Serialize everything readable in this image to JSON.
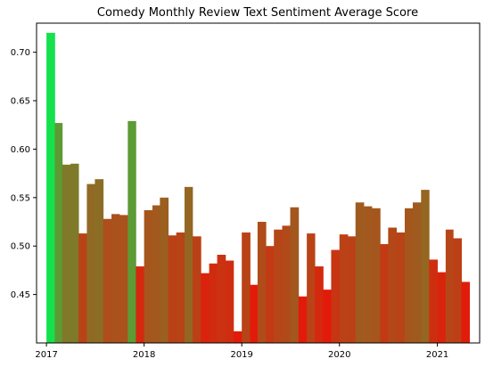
{
  "chart_data": {
    "type": "bar",
    "title": "Comedy Monthly Review Text Sentiment Average Score",
    "xlabel": "",
    "ylabel": "",
    "ylim": [
      0.4,
      0.73
    ],
    "xlim": [
      "2016-11-25",
      "2021-06-08"
    ],
    "y_ticks": [
      "0.45",
      "0.50",
      "0.55",
      "0.60",
      "0.65",
      "0.70"
    ],
    "x_ticks": [
      {
        "date": "2017-01-01",
        "label": "2017"
      },
      {
        "date": "2018-01-01",
        "label": "2018"
      },
      {
        "date": "2019-01-01",
        "label": "2019"
      },
      {
        "date": "2020-01-01",
        "label": "2020"
      },
      {
        "date": "2021-01-01",
        "label": "2021"
      }
    ],
    "grid": false,
    "color_scale": {
      "low": "#e31a09",
      "high": "#14e14c",
      "low_value": 0.46,
      "high_value": 0.72
    },
    "x": [
      "2017-01",
      "2017-02",
      "2017-03",
      "2017-04",
      "2017-05",
      "2017-06",
      "2017-07",
      "2017-08",
      "2017-09",
      "2017-10",
      "2017-11",
      "2017-12",
      "2018-01",
      "2018-02",
      "2018-03",
      "2018-04",
      "2018-05",
      "2018-06",
      "2018-07",
      "2018-08",
      "2018-09",
      "2018-10",
      "2018-11",
      "2018-12",
      "2019-01",
      "2019-02",
      "2019-03",
      "2019-04",
      "2019-05",
      "2019-06",
      "2019-07",
      "2019-08",
      "2019-09",
      "2019-10",
      "2019-11",
      "2019-12",
      "2020-01",
      "2020-02",
      "2020-03",
      "2020-04",
      "2020-05",
      "2020-06",
      "2020-07",
      "2020-08",
      "2020-09",
      "2020-10",
      "2020-11",
      "2020-12",
      "2021-01",
      "2021-02",
      "2021-03",
      "2021-04"
    ],
    "values": [
      0.72,
      0.627,
      0.584,
      0.585,
      0.513,
      0.564,
      0.569,
      0.528,
      0.533,
      0.532,
      0.629,
      0.479,
      0.537,
      0.542,
      0.55,
      0.511,
      0.514,
      0.561,
      0.51,
      0.472,
      0.482,
      0.491,
      0.485,
      0.412,
      0.514,
      0.46,
      0.525,
      0.5,
      0.517,
      0.521,
      0.54,
      0.448,
      0.513,
      0.479,
      0.455,
      0.496,
      0.512,
      0.51,
      0.545,
      0.541,
      0.539,
      0.502,
      0.519,
      0.514,
      0.539,
      0.545,
      0.558,
      0.486,
      0.473,
      0.517,
      0.508,
      0.463
    ]
  }
}
